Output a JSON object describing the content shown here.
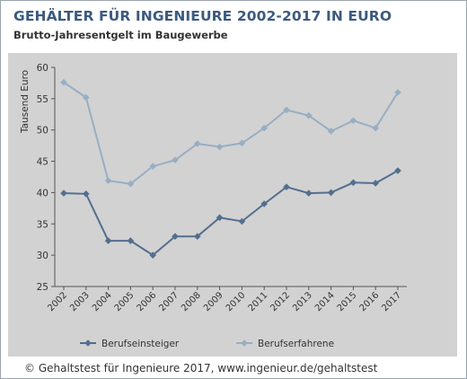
{
  "colors": {
    "title": "#3c5a80",
    "panel": "#d2d2d2",
    "series_einsteiger": "#536e8f",
    "series_erfahrene": "#98aec3"
  },
  "chart_data": {
    "type": "line",
    "title": "GEHÄLTER FÜR INGENIEURE 2002-2017  IN EURO",
    "subtitle": "Brutto-Jahresentgelt im Baugewerbe",
    "xlabel": "",
    "ylabel": "Tausend Euro",
    "x": [
      "2002",
      "2003",
      "2004",
      "2005",
      "2006",
      "2007",
      "2008",
      "2009",
      "2010",
      "2011",
      "2012",
      "2013",
      "2014",
      "2015",
      "2016",
      "2017"
    ],
    "ylim": [
      25,
      60
    ],
    "yticks": [
      25,
      30,
      35,
      40,
      45,
      50,
      55,
      60
    ],
    "grid": false,
    "legend_position": "bottom",
    "series": [
      {
        "name": "Berufseinsteiger",
        "color": "#536e8f",
        "marker": "diamond",
        "values": [
          39.9,
          39.8,
          32.3,
          32.3,
          30.0,
          33.0,
          33.0,
          36.0,
          35.4,
          38.2,
          40.9,
          39.9,
          40.0,
          41.6,
          41.5,
          43.5
        ]
      },
      {
        "name": "Berufserfahrene",
        "color": "#98aec3",
        "marker": "diamond",
        "values": [
          57.6,
          55.2,
          41.9,
          41.4,
          44.2,
          45.2,
          47.8,
          47.3,
          47.9,
          50.3,
          53.2,
          52.3,
          49.8,
          51.5,
          50.3,
          56.0
        ]
      }
    ]
  },
  "footer": {
    "text": "© Gehaltstest für Ingenieure 2017, www.ingenieur.de/gehaltstest"
  }
}
